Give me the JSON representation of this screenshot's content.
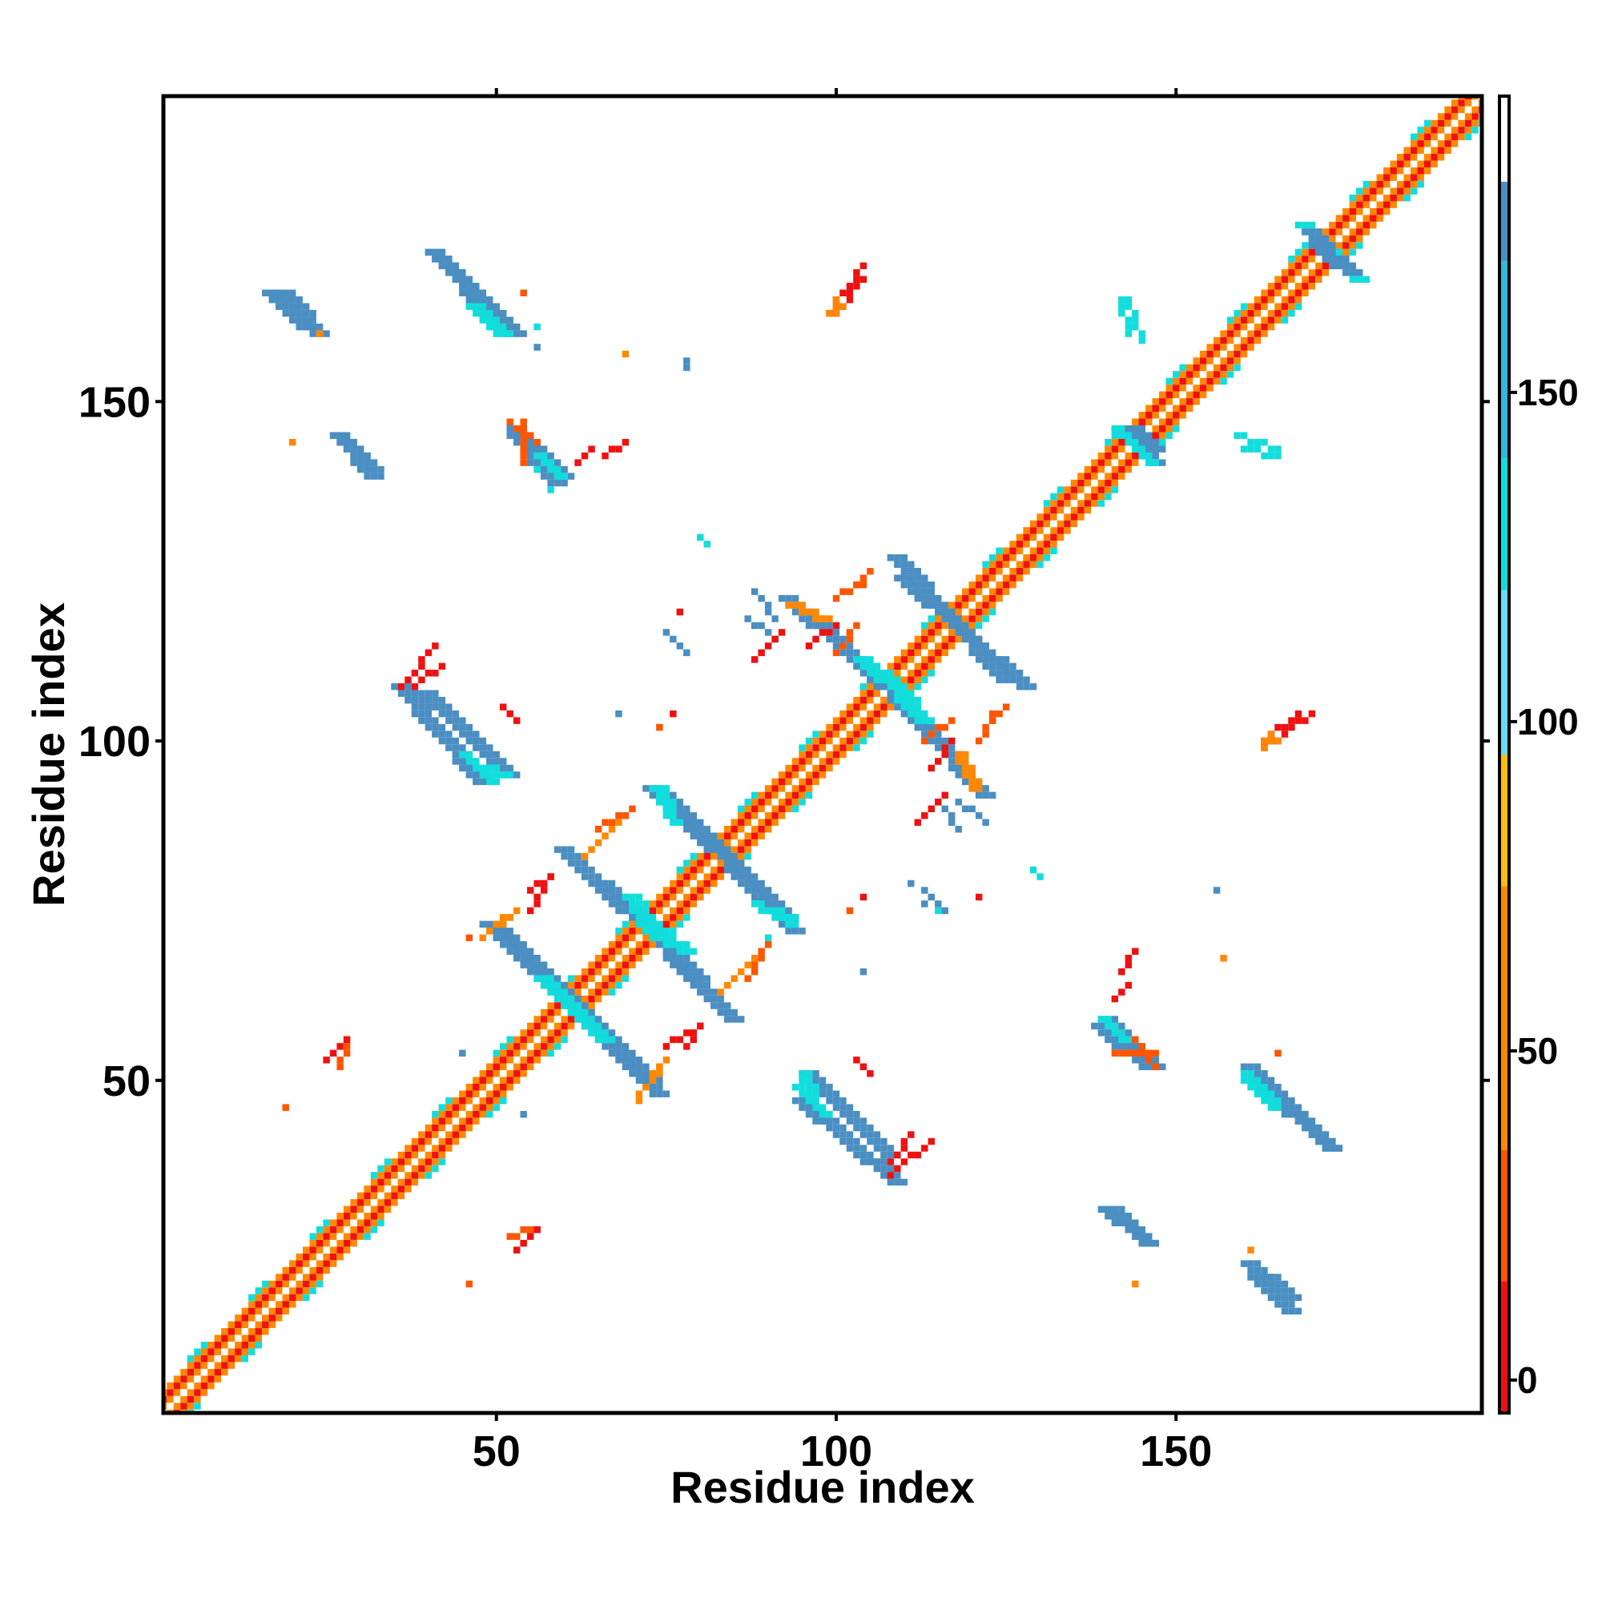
{
  "chart_data": {
    "type": "heatmap",
    "title": "",
    "xlabel": "Residue index",
    "ylabel": "Residue index",
    "xlim": [
      1,
      195
    ],
    "ylim": [
      1,
      195
    ],
    "x_ticks": [
      50,
      100,
      150
    ],
    "y_ticks": [
      50,
      100,
      150
    ],
    "grid": false,
    "colorbar": {
      "ticks": [
        0,
        50,
        100,
        150
      ],
      "range": [
        -5,
        195
      ],
      "bands": [
        {
          "from": -5,
          "to": 15,
          "color": "#ee1111"
        },
        {
          "from": 15,
          "to": 35,
          "color": "#ff5500"
        },
        {
          "from": 35,
          "to": 75,
          "color": "#ff8800"
        },
        {
          "from": 75,
          "to": 95,
          "color": "#ffbb11"
        },
        {
          "from": 95,
          "to": 120,
          "color": "#66ddee"
        },
        {
          "from": 120,
          "to": 140,
          "color": "#11dddd"
        },
        {
          "from": 140,
          "to": 170,
          "color": "#33b8dd"
        },
        {
          "from": 170,
          "to": 182,
          "color": "#4a8ec2"
        },
        {
          "from": 182,
          "to": 195,
          "color": "#ffffff"
        }
      ]
    },
    "diagonal": {
      "from": 1,
      "to": 195,
      "band_colors": [
        "#ffffff",
        "#ff8800",
        "#ee1111",
        "#11dddd"
      ]
    },
    "segments": [
      {
        "x1": 92,
        "y1": 121,
        "x2": 111,
        "y2": 104,
        "color": "#4a8ec2",
        "width": 3
      },
      {
        "x1": 109,
        "y1": 124,
        "x2": 127,
        "y2": 108,
        "color": "#4a8ec2",
        "width": 3
      },
      {
        "x1": 106,
        "y1": 110,
        "x2": 112,
        "y2": 103,
        "color": "#11dddd",
        "width": 3
      },
      {
        "x1": 93,
        "y1": 120,
        "x2": 98,
        "y2": 118,
        "color": "#ff8800",
        "width": 2
      },
      {
        "x1": 72,
        "y1": 93,
        "x2": 92,
        "y2": 74,
        "color": "#4a8ec2",
        "width": 3
      },
      {
        "x1": 59,
        "y1": 84,
        "x2": 79,
        "y2": 65,
        "color": "#4a8ec2",
        "width": 3
      },
      {
        "x1": 50,
        "y1": 72,
        "x2": 64,
        "y2": 58,
        "color": "#4a8ec2",
        "width": 3
      },
      {
        "x1": 63,
        "y1": 58,
        "x2": 73,
        "y2": 48,
        "color": "#4a8ec2",
        "width": 3
      },
      {
        "x1": 60,
        "y1": 61,
        "x2": 65,
        "y2": 56,
        "color": "#11dddd",
        "width": 3
      },
      {
        "x1": 71,
        "y1": 73,
        "x2": 77,
        "y2": 69,
        "color": "#11dddd",
        "width": 3
      },
      {
        "x1": 74,
        "y1": 93,
        "x2": 75,
        "y2": 90,
        "color": "#11dddd",
        "width": 2
      },
      {
        "x1": 88,
        "y1": 76,
        "x2": 93,
        "y2": 73,
        "color": "#11dddd",
        "width": 2
      },
      {
        "x1": 39,
        "y1": 107,
        "x2": 51,
        "y2": 95,
        "color": "#4a8ec2",
        "width": 3
      },
      {
        "x1": 45,
        "y1": 97,
        "x2": 51,
        "y2": 95,
        "color": "#11dddd",
        "width": 2
      },
      {
        "x1": 94,
        "y1": 47,
        "x2": 108,
        "y2": 35,
        "color": "#4a8ec2",
        "width": 3
      },
      {
        "x1": 94,
        "y1": 49,
        "x2": 98,
        "y2": 45,
        "color": "#11dddd",
        "width": 2
      },
      {
        "x1": 40,
        "y1": 172,
        "x2": 50,
        "y2": 161,
        "color": "#4a8ec2",
        "width": 3
      },
      {
        "x1": 46,
        "y1": 164,
        "x2": 50,
        "y2": 160,
        "color": "#11dddd",
        "width": 2
      },
      {
        "x1": 18,
        "y1": 166,
        "x2": 23,
        "y2": 160,
        "color": "#4a8ec2",
        "width": 3
      },
      {
        "x1": 26,
        "y1": 145,
        "x2": 31,
        "y2": 139,
        "color": "#4a8ec2",
        "width": 3
      },
      {
        "x1": 52,
        "y1": 145,
        "x2": 58,
        "y2": 138,
        "color": "#4a8ec2",
        "width": 3
      },
      {
        "x1": 139,
        "y1": 59,
        "x2": 146,
        "y2": 52,
        "color": "#4a8ec2",
        "width": 3
      },
      {
        "x1": 139,
        "y1": 59,
        "x2": 142,
        "y2": 56,
        "color": "#11dddd",
        "width": 2
      },
      {
        "x1": 160,
        "y1": 52,
        "x2": 172,
        "y2": 40,
        "color": "#4a8ec2",
        "width": 3
      },
      {
        "x1": 160,
        "y1": 51,
        "x2": 164,
        "y2": 47,
        "color": "#11dddd",
        "width": 2
      },
      {
        "x1": 140,
        "y1": 31,
        "x2": 145,
        "y2": 26,
        "color": "#4a8ec2",
        "width": 3
      },
      {
        "x1": 161,
        "y1": 21,
        "x2": 166,
        "y2": 16,
        "color": "#4a8ec2",
        "width": 3
      },
      {
        "x1": 168,
        "y1": 176,
        "x2": 173,
        "y2": 171,
        "color": "#11dddd",
        "width": 3
      },
      {
        "x1": 170,
        "y1": 173,
        "x2": 175,
        "y2": 169,
        "color": "#4a8ec2",
        "width": 3
      },
      {
        "x1": 141,
        "y1": 146,
        "x2": 146,
        "y2": 143,
        "color": "#4a8ec2",
        "width": 3
      },
      {
        "x1": 141,
        "y1": 146,
        "x2": 143,
        "y2": 144,
        "color": "#11dddd",
        "width": 2
      },
      {
        "x1": 143,
        "y1": 165,
        "x2": 145,
        "y2": 159,
        "color": "#11dddd",
        "width": 1
      },
      {
        "x1": 160,
        "y1": 143,
        "x2": 165,
        "y2": 142,
        "color": "#11dddd",
        "width": 1
      },
      {
        "x1": 87,
        "y1": 118,
        "x2": 91,
        "y2": 115,
        "color": "#4a8ec2",
        "width": 1
      },
      {
        "x1": 118,
        "y1": 91,
        "x2": 122,
        "y2": 88,
        "color": "#4a8ec2",
        "width": 1
      },
      {
        "x1": 51,
        "y1": 105,
        "x2": 53,
        "y2": 103,
        "color": "#ee1111",
        "width": 1
      },
      {
        "x1": 38,
        "y1": 108,
        "x2": 42,
        "y2": 111,
        "color": "#ee1111",
        "width": 1
      },
      {
        "x1": 100,
        "y1": 163,
        "x2": 104,
        "y2": 168,
        "color": "#ee1111",
        "width": 1
      },
      {
        "x1": 100,
        "y1": 163,
        "x2": 101,
        "y2": 164,
        "color": "#ff8800",
        "width": 1
      },
      {
        "x1": 108,
        "y1": 36,
        "x2": 114,
        "y2": 41,
        "color": "#ee1111",
        "width": 1
      },
      {
        "x1": 163,
        "y1": 99,
        "x2": 170,
        "y2": 104,
        "color": "#ee1111",
        "width": 1
      },
      {
        "x1": 163,
        "y1": 99,
        "x2": 165,
        "y2": 100,
        "color": "#ff8800",
        "width": 1
      },
      {
        "x1": 112,
        "y1": 88,
        "x2": 116,
        "y2": 92,
        "color": "#ee1111",
        "width": 1
      },
      {
        "x1": 113,
        "y1": 100,
        "x2": 117,
        "y2": 103,
        "color": "#ff5500",
        "width": 1
      },
      {
        "x1": 123,
        "y1": 103,
        "x2": 125,
        "y2": 105,
        "color": "#ff5500",
        "width": 1
      },
      {
        "x1": 96,
        "y1": 114,
        "x2": 100,
        "y2": 117,
        "color": "#ee1111",
        "width": 1
      },
      {
        "x1": 100,
        "y1": 121,
        "x2": 104,
        "y2": 123,
        "color": "#ff5500",
        "width": 1
      },
      {
        "x1": 65,
        "y1": 87,
        "x2": 70,
        "y2": 90,
        "color": "#ff5500",
        "width": 1
      },
      {
        "x1": 71,
        "y1": 48,
        "x2": 74,
        "y2": 52,
        "color": "#ff8800",
        "width": 1
      },
      {
        "x1": 75,
        "y1": 55,
        "x2": 80,
        "y2": 58,
        "color": "#ee1111",
        "width": 1
      },
      {
        "x1": 83,
        "y1": 63,
        "x2": 88,
        "y2": 68,
        "color": "#ff8800",
        "width": 1
      },
      {
        "x1": 55,
        "y1": 78,
        "x2": 58,
        "y2": 80,
        "color": "#ee1111",
        "width": 1
      },
      {
        "x1": 50,
        "y1": 73,
        "x2": 53,
        "y2": 75,
        "color": "#ff8800",
        "width": 1
      },
      {
        "x1": 52,
        "y1": 27,
        "x2": 56,
        "y2": 28,
        "color": "#ff5500",
        "width": 1
      },
      {
        "x1": 52,
        "y1": 147,
        "x2": 56,
        "y2": 144,
        "color": "#ff5500",
        "width": 1
      },
      {
        "x1": 66,
        "y1": 142,
        "x2": 69,
        "y2": 144,
        "color": "#ee1111",
        "width": 1
      },
      {
        "x1": 141,
        "y1": 54,
        "x2": 147,
        "y2": 54,
        "color": "#ff5500",
        "width": 1
      },
      {
        "x1": 141,
        "y1": 62,
        "x2": 143,
        "y2": 64,
        "color": "#ee1111",
        "width": 1
      },
      {
        "x1": 25,
        "y1": 53,
        "x2": 28,
        "y2": 56,
        "color": "#ee1111",
        "width": 1
      },
      {
        "x1": 75,
        "y1": 116,
        "x2": 78,
        "y2": 113,
        "color": "#4a8ec2",
        "width": 1
      }
    ],
    "points": [
      {
        "x": 54,
        "y": 166,
        "color": "#ff5500"
      },
      {
        "x": 56,
        "y": 161,
        "color": "#11dddd"
      },
      {
        "x": 56,
        "y": 158,
        "color": "#4a8ec2"
      },
      {
        "x": 24,
        "y": 160,
        "color": "#ff8800"
      },
      {
        "x": 20,
        "y": 144,
        "color": "#ff8800"
      },
      {
        "x": 69,
        "y": 157,
        "color": "#ff8800"
      },
      {
        "x": 78,
        "y": 156,
        "color": "#4a8ec2"
      },
      {
        "x": 78,
        "y": 155,
        "color": "#4a8ec2"
      },
      {
        "x": 56,
        "y": 140,
        "color": "#11dddd"
      },
      {
        "x": 58,
        "y": 137,
        "color": "#11dddd"
      },
      {
        "x": 80,
        "y": 130,
        "color": "#11dddd"
      },
      {
        "x": 81,
        "y": 129,
        "color": "#11dddd"
      },
      {
        "x": 77,
        "y": 119,
        "color": "#ee1111"
      },
      {
        "x": 68,
        "y": 104,
        "color": "#4a8ec2"
      },
      {
        "x": 76,
        "y": 104,
        "color": "#ee1111"
      },
      {
        "x": 74,
        "y": 102,
        "color": "#ff5500"
      },
      {
        "x": 104,
        "y": 66,
        "color": "#4a8ec2"
      },
      {
        "x": 102,
        "y": 75,
        "color": "#ff5500"
      },
      {
        "x": 104,
        "y": 77,
        "color": "#ee1111"
      },
      {
        "x": 111,
        "y": 79,
        "color": "#4a8ec2"
      },
      {
        "x": 113,
        "y": 76,
        "color": "#4a8ec2"
      },
      {
        "x": 115,
        "y": 75,
        "color": "#11dddd"
      },
      {
        "x": 121,
        "y": 77,
        "color": "#ee1111"
      },
      {
        "x": 129,
        "y": 81,
        "color": "#11dddd"
      },
      {
        "x": 130,
        "y": 80,
        "color": "#11dddd"
      },
      {
        "x": 156,
        "y": 78,
        "color": "#4a8ec2"
      },
      {
        "x": 157,
        "y": 68,
        "color": "#ff8800"
      },
      {
        "x": 90,
        "y": 71,
        "color": "#11dddd"
      },
      {
        "x": 46,
        "y": 71,
        "color": "#ff5500"
      },
      {
        "x": 45,
        "y": 54,
        "color": "#4a8ec2"
      },
      {
        "x": 54,
        "y": 45,
        "color": "#4a8ec2"
      },
      {
        "x": 19,
        "y": 46,
        "color": "#ff5500"
      },
      {
        "x": 46,
        "y": 20,
        "color": "#ff5500"
      },
      {
        "x": 144,
        "y": 20,
        "color": "#ff8800"
      },
      {
        "x": 165,
        "y": 54,
        "color": "#ff5500"
      },
      {
        "x": 161,
        "y": 25,
        "color": "#ff8800"
      },
      {
        "x": 71,
        "y": 47,
        "color": "#ff8800"
      }
    ]
  }
}
